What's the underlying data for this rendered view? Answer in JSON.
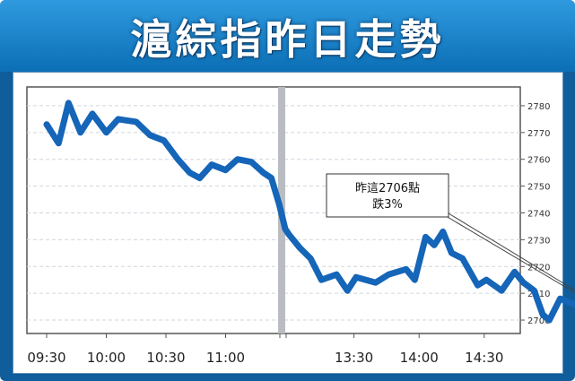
{
  "title": "滬綜指昨日走勢",
  "chart_data": {
    "type": "line",
    "title": "滬綜指昨日走勢",
    "x_ticks": [
      "09:30",
      "10:00",
      "10:30",
      "11:00",
      "13:30",
      "14:00",
      "14:30"
    ],
    "y_ticks": [
      2700,
      2710,
      2720,
      2730,
      2740,
      2750,
      2760,
      2770,
      2780
    ],
    "ylim": [
      2695,
      2787
    ],
    "grid": true,
    "color": "#1565b8",
    "annotation": {
      "lines": [
        "昨這2706點",
        "跌3%"
      ]
    },
    "series": [
      {
        "points": [
          [
            "09:30",
            2773
          ],
          [
            "09:36",
            2766
          ],
          [
            "09:41",
            2781
          ],
          [
            "09:47",
            2770
          ],
          [
            "09:53",
            2777
          ],
          [
            "10:00",
            2770
          ],
          [
            "10:06",
            2775
          ],
          [
            "10:15",
            2774
          ],
          [
            "10:22",
            2769
          ],
          [
            "10:29",
            2767
          ],
          [
            "10:36",
            2760
          ],
          [
            "10:42",
            2755
          ],
          [
            "10:47",
            2753
          ],
          [
            "10:53",
            2758
          ],
          [
            "11:00",
            2756
          ],
          [
            "11:06",
            2760
          ],
          [
            "11:13",
            2759
          ],
          [
            "11:19",
            2755
          ],
          [
            "11:23",
            2753
          ],
          [
            "11:27",
            2743
          ],
          [
            "11:30",
            2734
          ],
          [
            "13:00",
            2732
          ],
          [
            "13:05",
            2727
          ],
          [
            "13:10",
            2723
          ],
          [
            "13:15",
            2715
          ],
          [
            "13:22",
            2717
          ],
          [
            "13:27",
            2711
          ],
          [
            "13:31",
            2716
          ],
          [
            "13:40",
            2714
          ],
          [
            "13:46",
            2717
          ],
          [
            "13:54",
            2719
          ],
          [
            "13:58",
            2715
          ],
          [
            "14:03",
            2731
          ],
          [
            "14:07",
            2728
          ],
          [
            "14:11",
            2733
          ],
          [
            "14:15",
            2725
          ],
          [
            "14:20",
            2723
          ],
          [
            "14:27",
            2713
          ],
          [
            "14:31",
            2715
          ],
          [
            "14:38",
            2711
          ],
          [
            "14:44",
            2718
          ],
          [
            "14:48",
            2714
          ],
          [
            "14:53",
            2711
          ],
          [
            "14:57",
            2702
          ],
          [
            "15:00",
            2700
          ],
          [
            "15:05",
            2708
          ],
          [
            "15:11",
            2706
          ],
          [
            "15:17",
            2707
          ],
          [
            "15:20",
            2706
          ]
        ]
      }
    ]
  }
}
